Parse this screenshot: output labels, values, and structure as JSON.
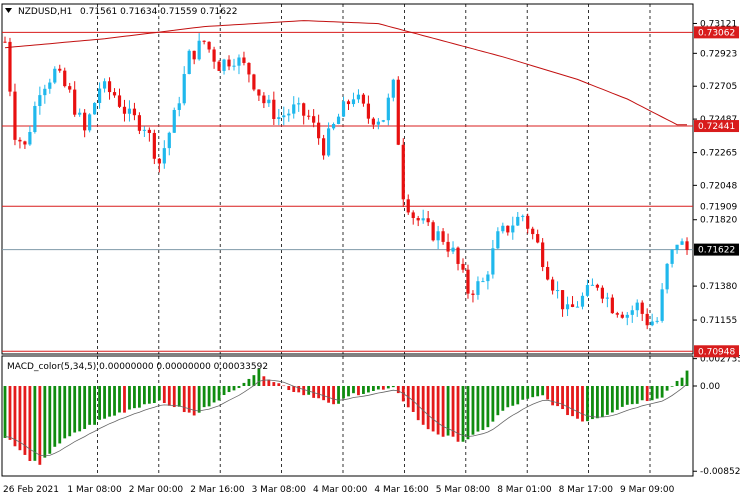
{
  "header": {
    "symbol": "NZDUSD,H1",
    "ohlc": "0.71561 0.71634 0.71559 0.71622"
  },
  "macd": {
    "label": "MACD_color(5,34,5) 0.00000000 0.00000000 0.00033592",
    "ticks": [
      "0.0027352",
      "0.00",
      "-0.008524"
    ]
  },
  "colors": {
    "bull": "#1fb8ec",
    "bear": "#e81010",
    "ma": "#c21010",
    "hline": "#d81c1c",
    "current": "#7f9aa8",
    "macd_up": "#0f8c0f",
    "macd_down": "#e41a1a"
  },
  "price_axis": {
    "ticks": [
      "0.73121",
      "0.72923",
      "0.72705",
      "0.72487",
      "0.72265",
      "0.72048",
      "0.71820",
      "0.71380",
      "0.71155"
    ]
  },
  "levels": [
    {
      "label": "0.73062",
      "value": 0.73062,
      "boxed": true
    },
    {
      "label": "0.72441",
      "value": 0.72441,
      "boxed": true
    },
    {
      "label": "0.71909",
      "value": 0.71909,
      "boxed": false
    },
    {
      "label": "0.70948",
      "value": 0.70948,
      "boxed": true
    }
  ],
  "current_price": {
    "label": "0.71622",
    "value": 0.71622
  },
  "time_axis": [
    "26 Feb 2021",
    "1 Mar 08:00",
    "2 Mar 00:00",
    "2 Mar 16:00",
    "3 Mar 08:00",
    "4 Mar 00:00",
    "4 Mar 16:00",
    "5 Mar 08:00",
    "8 Mar 01:00",
    "8 Mar 17:00",
    "9 Mar 09:00"
  ],
  "chart_data": {
    "type": "candlestick",
    "symbol": "NZDUSD",
    "timeframe": "H1",
    "price_ylim": [
      0.7093,
      0.7325
    ],
    "price_anchors": [
      [
        0,
        0.73
      ],
      [
        2,
        0.724
      ],
      [
        4,
        0.723
      ],
      [
        7,
        0.727
      ],
      [
        10,
        0.728
      ],
      [
        13,
        0.7265
      ],
      [
        16,
        0.724
      ],
      [
        19,
        0.727
      ],
      [
        22,
        0.7265
      ],
      [
        25,
        0.725
      ],
      [
        28,
        0.7245
      ],
      [
        31,
        0.722
      ],
      [
        34,
        0.725
      ],
      [
        37,
        0.729
      ],
      [
        40,
        0.73
      ],
      [
        43,
        0.7285
      ],
      [
        46,
        0.729
      ],
      [
        49,
        0.728
      ],
      [
        52,
        0.726
      ],
      [
        55,
        0.725
      ],
      [
        58,
        0.7255
      ],
      [
        61,
        0.725
      ],
      [
        64,
        0.723
      ],
      [
        67,
        0.725
      ],
      [
        70,
        0.7265
      ],
      [
        73,
        0.725
      ],
      [
        76,
        0.725
      ],
      [
        78,
        0.727
      ],
      [
        80,
        0.72
      ],
      [
        82,
        0.7185
      ],
      [
        85,
        0.7175
      ],
      [
        88,
        0.717
      ],
      [
        90,
        0.716
      ],
      [
        93,
        0.7135
      ],
      [
        96,
        0.714
      ],
      [
        99,
        0.717
      ],
      [
        102,
        0.718
      ],
      [
        104,
        0.7185
      ],
      [
        107,
        0.7165
      ],
      [
        110,
        0.714
      ],
      [
        113,
        0.712
      ],
      [
        116,
        0.713
      ],
      [
        119,
        0.714
      ],
      [
        122,
        0.7125
      ],
      [
        125,
        0.712
      ],
      [
        127,
        0.7125
      ],
      [
        129,
        0.7115
      ],
      [
        131,
        0.7115
      ],
      [
        133,
        0.715
      ],
      [
        135,
        0.7168
      ],
      [
        137,
        0.7162
      ]
    ],
    "candle_count": 138,
    "ma_anchors": [
      [
        0,
        0.7296
      ],
      [
        20,
        0.7302
      ],
      [
        40,
        0.731
      ],
      [
        60,
        0.7314
      ],
      [
        75,
        0.7312
      ],
      [
        100,
        0.729
      ],
      [
        115,
        0.7275
      ],
      [
        125,
        0.7262
      ],
      [
        135,
        0.7245
      ]
    ],
    "macd": {
      "ylim": [
        -0.009,
        0.003
      ],
      "anchors": [
        [
          0,
          -0.005
        ],
        [
          4,
          -0.007
        ],
        [
          7,
          -0.008
        ],
        [
          10,
          -0.006
        ],
        [
          15,
          -0.0045
        ],
        [
          19,
          -0.0035
        ],
        [
          24,
          -0.0025
        ],
        [
          30,
          -0.0015
        ],
        [
          34,
          -0.002
        ],
        [
          38,
          -0.003
        ],
        [
          42,
          -0.0015
        ],
        [
          46,
          -0.0005
        ],
        [
          48,
          0.0005
        ],
        [
          51,
          0.0015
        ],
        [
          54,
          0.0005
        ],
        [
          58,
          -0.0005
        ],
        [
          62,
          -0.001
        ],
        [
          66,
          -0.002
        ],
        [
          70,
          -0.0008
        ],
        [
          74,
          -0.0005
        ],
        [
          78,
          -0.0003
        ],
        [
          81,
          -0.002
        ],
        [
          84,
          -0.004
        ],
        [
          88,
          -0.005
        ],
        [
          92,
          -0.0055
        ],
        [
          96,
          -0.0045
        ],
        [
          100,
          -0.0025
        ],
        [
          104,
          -0.0015
        ],
        [
          108,
          -0.001
        ],
        [
          112,
          -0.0025
        ],
        [
          116,
          -0.0035
        ],
        [
          120,
          -0.003
        ],
        [
          124,
          -0.002
        ],
        [
          128,
          -0.0015
        ],
        [
          132,
          -0.001
        ],
        [
          134,
          0.0
        ],
        [
          136,
          0.001
        ],
        [
          137,
          0.0015
        ]
      ]
    }
  }
}
